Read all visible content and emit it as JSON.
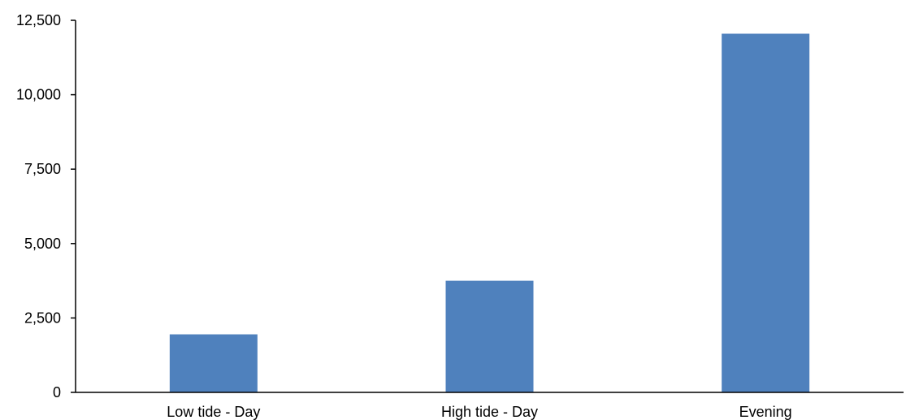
{
  "chart_data": {
    "type": "bar",
    "title": "",
    "xlabel": "",
    "ylabel": "",
    "categories": [
      "Low tide - Day",
      "High tide - Day",
      "Evening"
    ],
    "values": [
      1950,
      3750,
      12050
    ],
    "ylim": [
      0,
      12500
    ],
    "yticks": [
      0,
      2500,
      5000,
      7500,
      10000,
      12500
    ],
    "ytick_labels": [
      "0",
      "2,500",
      "5,000",
      "7,500",
      "10,000",
      "12,500"
    ],
    "grid": false,
    "legend": "none",
    "bar_color": "#4F81BD"
  }
}
